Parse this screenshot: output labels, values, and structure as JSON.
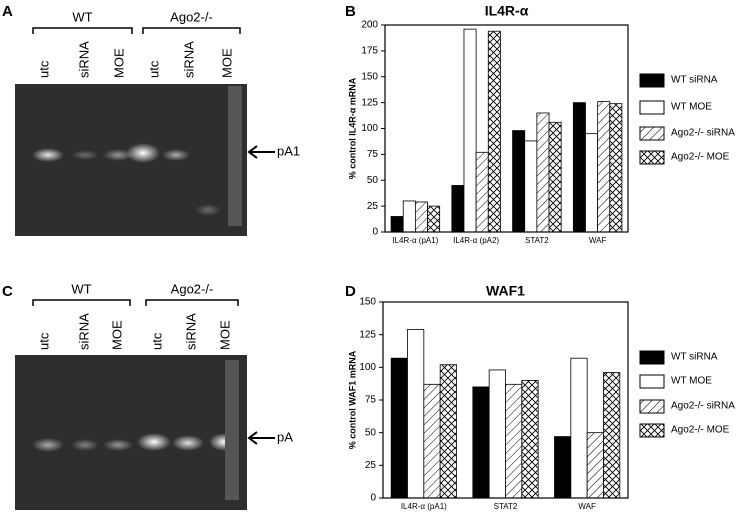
{
  "gels": [
    {
      "panel": "A",
      "groups": [
        "WT",
        "Ago2-/-"
      ],
      "lanes": [
        "utc",
        "siRNA",
        "MOE",
        "utc",
        "siRNA",
        "MOE"
      ],
      "marker": "pA1"
    },
    {
      "panel": "C",
      "groups": [
        "WT",
        "Ago2-/-"
      ],
      "lanes": [
        "utc",
        "siRNA",
        "MOE",
        "utc",
        "siRNA",
        "MOE"
      ],
      "marker": "pA"
    }
  ],
  "chart_data": [
    {
      "type": "bar",
      "panel": "B",
      "title": "IL4R-α",
      "y_label": "% control IL4R-α mRNA",
      "categories": [
        "IL4R-α (pA1)",
        "IL4R-α (pA2)",
        "STAT2",
        "WAF"
      ],
      "series": [
        {
          "name": "WT siRNA",
          "color": "#000000",
          "fill": "solid",
          "values": [
            15,
            45,
            98,
            125
          ]
        },
        {
          "name": "WT MOE",
          "color": "#000000",
          "fill": "none",
          "values": [
            30,
            196,
            88,
            95
          ]
        },
        {
          "name": "Ago2-/- siRNA",
          "color": "#000000",
          "fill": "hatch",
          "values": [
            29,
            77,
            115,
            126
          ]
        },
        {
          "name": "Ago2-/- MOE",
          "color": "#000000",
          "fill": "crosshatch",
          "values": [
            25,
            194,
            106,
            124
          ]
        }
      ],
      "ylim": [
        0,
        200
      ],
      "yticks": [
        0,
        25,
        50,
        75,
        100,
        125,
        150,
        175,
        200
      ]
    },
    {
      "type": "bar",
      "panel": "D",
      "title": "WAF1",
      "y_label": "% control WAF1 mRNA",
      "categories": [
        "IL4R-α (pA1)",
        "STAT2",
        "WAF"
      ],
      "series": [
        {
          "name": "WT siRNA",
          "color": "#000000",
          "fill": "solid",
          "values": [
            107,
            85,
            47
          ]
        },
        {
          "name": "WT MOE",
          "color": "#000000",
          "fill": "none",
          "values": [
            129,
            98,
            107
          ]
        },
        {
          "name": "Ago2-/- siRNA",
          "color": "#000000",
          "fill": "hatch",
          "values": [
            87,
            87,
            50
          ]
        },
        {
          "name": "Ago2-/- MOE",
          "color": "#000000",
          "fill": "crosshatch",
          "values": [
            102,
            90,
            96
          ]
        }
      ],
      "ylim": [
        0,
        150
      ],
      "yticks": [
        0,
        25,
        50,
        75,
        100,
        125,
        150
      ]
    }
  ]
}
